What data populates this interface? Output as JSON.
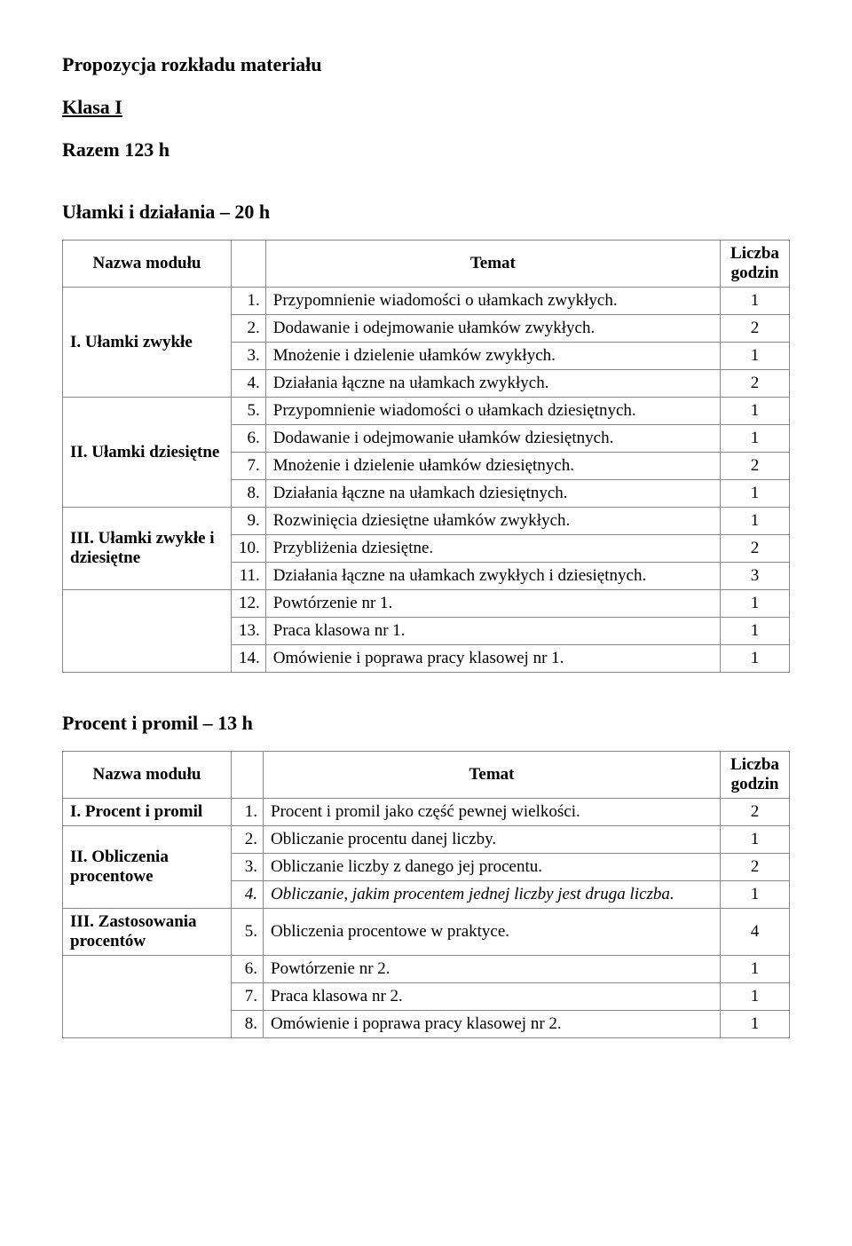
{
  "doc": {
    "title": "Propozycja rozkładu materiału",
    "klasa": "Klasa I",
    "razem": "Razem 123 h"
  },
  "section1": {
    "title": "Ułamki i działania – 20 h",
    "headers": {
      "module": "Nazwa modułu",
      "topic": "Temat",
      "hours": "Liczba godzin"
    },
    "modules": [
      {
        "name": "I. Ułamki zwykłe",
        "span": 4
      },
      {
        "name": "II. Ułamki dziesiętne",
        "span": 4
      },
      {
        "name": "III. Ułamki zwykłe i dziesiętne",
        "span": 3
      },
      {
        "name": "",
        "span": 3
      }
    ],
    "rows": [
      {
        "n": "1.",
        "t": "Przypomnienie wiadomości o ułamkach zwykłych.",
        "h": "1"
      },
      {
        "n": "2.",
        "t": "Dodawanie i odejmowanie ułamków zwykłych.",
        "h": "2"
      },
      {
        "n": "3.",
        "t": "Mnożenie i dzielenie ułamków zwykłych.",
        "h": "1"
      },
      {
        "n": "4.",
        "t": "Działania łączne na ułamkach zwykłych.",
        "h": "2"
      },
      {
        "n": "5.",
        "t": "Przypomnienie wiadomości o ułamkach dziesiętnych.",
        "h": "1"
      },
      {
        "n": "6.",
        "t": "Dodawanie i odejmowanie ułamków dziesiętnych.",
        "h": "1"
      },
      {
        "n": "7.",
        "t": "Mnożenie i dzielenie ułamków dziesiętnych.",
        "h": "2"
      },
      {
        "n": "8.",
        "t": "Działania łączne na ułamkach dziesiętnych.",
        "h": "1"
      },
      {
        "n": "9.",
        "t": "Rozwinięcia dziesiętne ułamków zwykłych.",
        "h": "1"
      },
      {
        "n": "10.",
        "t": "Przybliżenia dziesiętne.",
        "h": "2"
      },
      {
        "n": "11.",
        "t": "Działania łączne na ułamkach zwykłych i dziesiętnych.",
        "h": "3"
      },
      {
        "n": "12.",
        "t": "Powtórzenie nr 1.",
        "h": "1"
      },
      {
        "n": "13.",
        "t": "Praca klasowa nr 1.",
        "h": "1"
      },
      {
        "n": "14.",
        "t": "Omówienie i poprawa pracy klasowej nr 1.",
        "h": "1"
      }
    ]
  },
  "section2": {
    "title": "Procent i promil – 13 h",
    "headers": {
      "module": "Nazwa modułu",
      "topic": "Temat",
      "hours": "Liczba godzin"
    },
    "modules": [
      {
        "name": "I. Procent i promil",
        "span": 1
      },
      {
        "name": "II. Obliczenia procentowe",
        "span": 3
      },
      {
        "name": "III. Zastosowania procentów",
        "span": 1
      },
      {
        "name": "",
        "span": 3
      }
    ],
    "rows": [
      {
        "n": "1.",
        "t": "Procent i promil jako część pewnej wielkości.",
        "h": "2",
        "italic": false
      },
      {
        "n": "2.",
        "t": "Obliczanie procentu danej liczby.",
        "h": "1",
        "italic": false
      },
      {
        "n": "3.",
        "t": "Obliczanie liczby z danego jej procentu.",
        "h": "2",
        "italic": false
      },
      {
        "n": "4.",
        "t": "Obliczanie, jakim procentem jednej liczby jest druga liczba.",
        "h": "1",
        "italic": true
      },
      {
        "n": "5.",
        "t": "Obliczenia procentowe w praktyce.",
        "h": "4",
        "italic": false
      },
      {
        "n": "6.",
        "t": "Powtórzenie nr 2.",
        "h": "1",
        "italic": false
      },
      {
        "n": "7.",
        "t": "Praca klasowa nr 2.",
        "h": "1",
        "italic": false
      },
      {
        "n": "8.",
        "t": "Omówienie i poprawa pracy klasowej nr 2.",
        "h": "1",
        "italic": false
      }
    ]
  }
}
